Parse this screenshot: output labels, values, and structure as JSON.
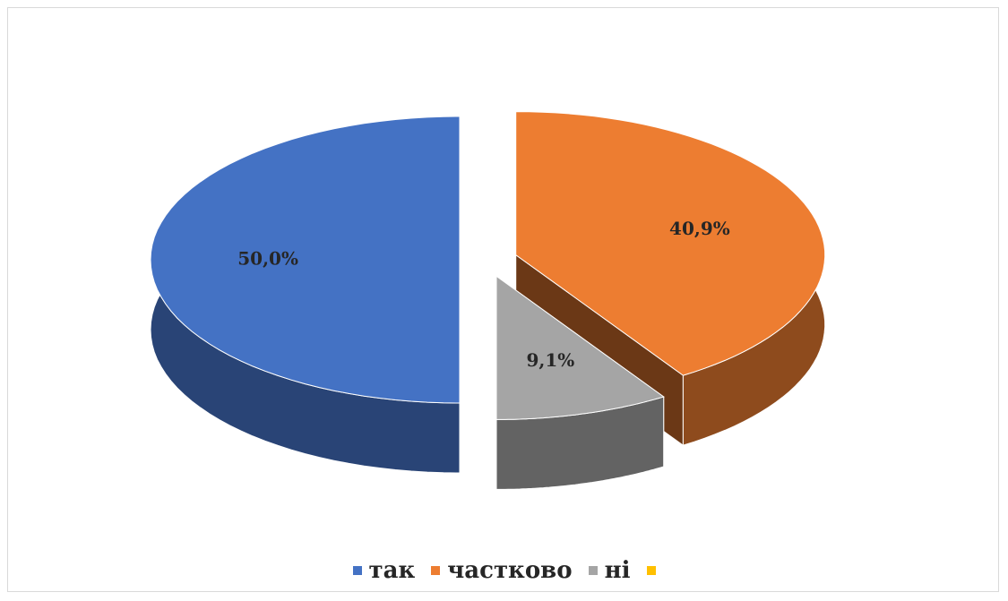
{
  "chart_data": {
    "type": "pie3d",
    "categories": [
      "так",
      "частково",
      "ні",
      null
    ],
    "values": [
      50.0,
      40.9,
      9.1,
      0
    ],
    "value_labels": [
      "50,0%",
      "40,9%",
      "9,1%",
      null
    ],
    "colors": [
      "#4472c4",
      "#ed7d31",
      "#a5a5a5",
      "#ffc000"
    ],
    "legend": "bottom"
  }
}
